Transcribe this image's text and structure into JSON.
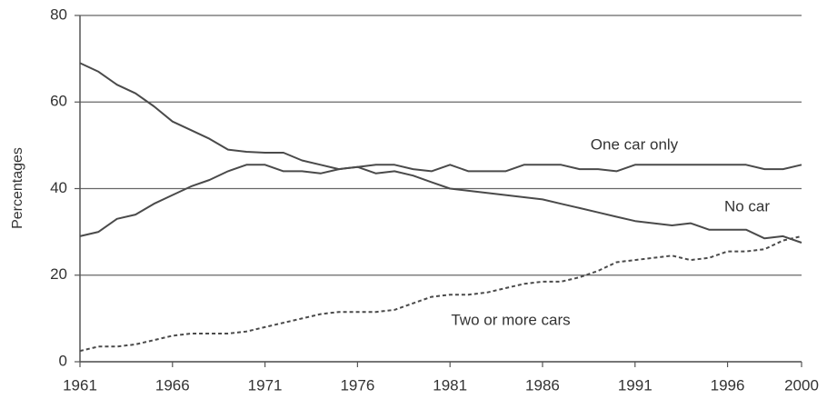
{
  "chart_data": {
    "type": "line",
    "y_label": "Percentages",
    "x": [
      1961,
      1962,
      1963,
      1964,
      1965,
      1966,
      1967,
      1968,
      1969,
      1970,
      1971,
      1972,
      1973,
      1974,
      1975,
      1976,
      1977,
      1978,
      1979,
      1980,
      1981,
      1982,
      1983,
      1984,
      1985,
      1986,
      1987,
      1988,
      1989,
      1990,
      1991,
      1992,
      1993,
      1994,
      1995,
      1996,
      1997,
      1998,
      1999,
      2000
    ],
    "series": [
      {
        "name": "No car",
        "color": "#4a4a4a",
        "dashed": false,
        "values": [
          69,
          67,
          64,
          62,
          59,
          55.5,
          53.5,
          51.5,
          49,
          48.5,
          48.3,
          48.3,
          46.5,
          45.5,
          44.5,
          45,
          43.5,
          44,
          43,
          41.5,
          40,
          39.5,
          39,
          38.5,
          38,
          37.5,
          36.5,
          35.5,
          34.5,
          33.5,
          32.5,
          32,
          31.5,
          32,
          30.5,
          30.5,
          30.5,
          28.5,
          29,
          27.5
        ]
      },
      {
        "name": "One car only",
        "color": "#4a4a4a",
        "dashed": false,
        "values": [
          29,
          30,
          33,
          34,
          36.5,
          38.5,
          40.5,
          42,
          44,
          45.5,
          45.5,
          44,
          44,
          43.5,
          44.5,
          45,
          45.5,
          45.5,
          44.5,
          44,
          45.5,
          44,
          44,
          44,
          45.5,
          45.5,
          45.5,
          44.5,
          44.5,
          44,
          45.5,
          45.5,
          45.5,
          45.5,
          45.5,
          45.5,
          45.5,
          44.5,
          44.5,
          45.5
        ]
      },
      {
        "name": "Two or more cars",
        "color": "#4a4a4a",
        "dashed": true,
        "values": [
          2.5,
          3.5,
          3.5,
          4,
          5,
          6,
          6.5,
          6.5,
          6.5,
          7,
          8,
          9,
          10,
          11,
          11.5,
          11.5,
          11.5,
          12,
          13.5,
          15,
          15.5,
          15.5,
          16,
          17,
          18,
          18.5,
          18.5,
          19.5,
          21,
          23,
          23.5,
          24,
          24.5,
          23.5,
          24,
          25.5,
          25.5,
          26,
          28,
          29
        ]
      }
    ],
    "xlim": [
      1961,
      2000
    ],
    "xticks": [
      1961,
      1966,
      1971,
      1976,
      1981,
      1986,
      1991,
      1996,
      2000
    ],
    "ylim": [
      0,
      80
    ],
    "yticks": [
      0,
      20,
      40,
      60,
      80
    ],
    "grid": true
  }
}
